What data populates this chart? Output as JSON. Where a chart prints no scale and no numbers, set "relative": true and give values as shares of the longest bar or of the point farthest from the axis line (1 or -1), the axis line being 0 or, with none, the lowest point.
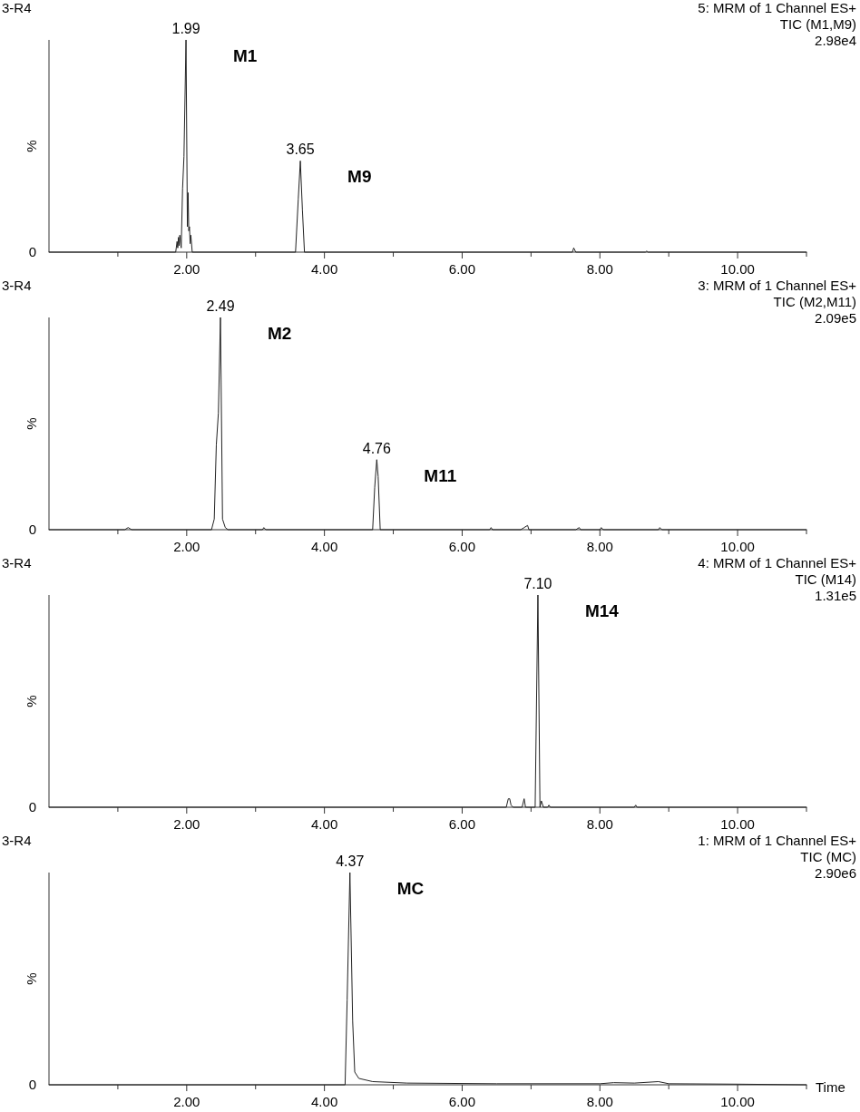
{
  "chart_data": [
    {
      "type": "line",
      "title": "3-R4",
      "ylabel": "%",
      "relative": true,
      "xlim": [
        0,
        11
      ],
      "xticks": [
        {
          "value": 1,
          "label": null
        },
        {
          "value": 2,
          "label": "2.00"
        },
        {
          "value": 3,
          "label": null
        },
        {
          "value": 4,
          "label": "4.00"
        },
        {
          "value": 5,
          "label": null
        },
        {
          "value": 6,
          "label": "6.00"
        },
        {
          "value": 7,
          "label": null
        },
        {
          "value": 8,
          "label": "8.00"
        },
        {
          "value": 9,
          "label": null
        },
        {
          "value": 10,
          "label": "10.00"
        },
        {
          "value": 11,
          "label": null
        }
      ],
      "series": [
        {
          "color": "#222222",
          "x": [
            0,
            1.84,
            1.86,
            1.87,
            1.88,
            1.89,
            1.9,
            1.92,
            1.94,
            1.96,
            1.99,
            2.01,
            2.02,
            2.03,
            2.04,
            2.05,
            2.06,
            2.08,
            3.58,
            3.62,
            3.65,
            3.68,
            3.71,
            7.6,
            7.62,
            7.65,
            8.66,
            8.68,
            8.7,
            11
          ],
          "values": [
            0,
            0,
            0.05,
            0.02,
            0.07,
            0.03,
            0.08,
            0.02,
            0.3,
            0.45,
            1,
            0.12,
            0.28,
            0.1,
            0.12,
            0.04,
            0.08,
            0,
            0,
            0.25,
            0.43,
            0.2,
            0,
            0,
            0.02,
            0,
            0,
            0.005,
            0,
            0
          ]
        }
      ],
      "annotations": [
        "5: MRM of 1 Channel ES+",
        "TIC (M1,M9)",
        "2.98e4",
        "0",
        "M1",
        "M9",
        {
          "text": "1.99",
          "x": 1.99,
          "y": 1
        },
        {
          "text": "3.65",
          "x": 3.65,
          "y": 0.43
        }
      ]
    },
    {
      "type": "line",
      "title": "3-R4",
      "ylabel": "%",
      "relative": true,
      "xlim": [
        0,
        11
      ],
      "xticks": [
        {
          "value": 1,
          "label": null
        },
        {
          "value": 2,
          "label": "2.00"
        },
        {
          "value": 3,
          "label": null
        },
        {
          "value": 4,
          "label": "4.00"
        },
        {
          "value": 5,
          "label": null
        },
        {
          "value": 6,
          "label": "6.00"
        },
        {
          "value": 7,
          "label": null
        },
        {
          "value": 8,
          "label": "8.00"
        },
        {
          "value": 9,
          "label": null
        },
        {
          "value": 10,
          "label": "10.00"
        },
        {
          "value": 11,
          "label": null
        }
      ],
      "series": [
        {
          "color": "#222222",
          "x": [
            0,
            1.1,
            1.15,
            1.2,
            2.36,
            2.4,
            2.43,
            2.46,
            2.49,
            2.52,
            2.56,
            2.6,
            3.1,
            3.12,
            3.15,
            4.7,
            4.73,
            4.76,
            4.78,
            4.81,
            6.4,
            6.42,
            6.44,
            6.85,
            6.9,
            6.95,
            6.97,
            7.65,
            7.7,
            7.72,
            8.0,
            8.02,
            8.05,
            8.85,
            8.87,
            8.9,
            11
          ],
          "values": [
            0,
            0,
            0.01,
            0,
            0,
            0.05,
            0.4,
            0.55,
            1,
            0.05,
            0.01,
            0,
            0,
            0.01,
            0,
            0,
            0.2,
            0.33,
            0.25,
            0,
            0,
            0.01,
            0,
            0,
            0.01,
            0.02,
            0,
            0,
            0.01,
            0,
            0,
            0.01,
            0,
            0,
            0.01,
            0,
            0
          ]
        }
      ],
      "annotations": [
        "3: MRM of 1 Channel ES+",
        "TIC (M2,M11)",
        "2.09e5",
        "0",
        "M2",
        "M11",
        {
          "text": "2.49",
          "x": 2.49,
          "y": 1
        },
        {
          "text": "4.76",
          "x": 4.76,
          "y": 0.33
        }
      ]
    },
    {
      "type": "line",
      "title": "3-R4",
      "ylabel": "%",
      "relative": true,
      "xlim": [
        0,
        11
      ],
      "xticks": [
        {
          "value": 1,
          "label": null
        },
        {
          "value": 2,
          "label": "2.00"
        },
        {
          "value": 3,
          "label": null
        },
        {
          "value": 4,
          "label": "4.00"
        },
        {
          "value": 5,
          "label": null
        },
        {
          "value": 6,
          "label": "6.00"
        },
        {
          "value": 7,
          "label": null
        },
        {
          "value": 8,
          "label": "8.00"
        },
        {
          "value": 9,
          "label": null
        },
        {
          "value": 10,
          "label": "10.00"
        },
        {
          "value": 11,
          "label": null
        }
      ],
      "series": [
        {
          "color": "#222222",
          "x": [
            0,
            6.64,
            6.67,
            6.69,
            6.71,
            6.74,
            6.87,
            6.9,
            6.92,
            7.06,
            7.1,
            7.13,
            7.15,
            7.18,
            7.24,
            7.26,
            7.28,
            8.5,
            8.52,
            8.54,
            11
          ],
          "values": [
            0,
            0,
            0.04,
            0.04,
            0.01,
            0,
            0,
            0.04,
            0,
            0,
            1,
            0,
            0.03,
            0,
            0,
            0.01,
            0,
            0,
            0.01,
            0,
            0
          ]
        }
      ],
      "annotations": [
        "4: MRM of 1 Channel ES+",
        "TIC (M14)",
        "1.31e5",
        "0",
        "M14",
        {
          "text": "7.10",
          "x": 7.1,
          "y": 1
        }
      ]
    },
    {
      "type": "line",
      "title": "3-R4",
      "ylabel": "%",
      "xlabel": "Time",
      "relative": true,
      "xlim": [
        0,
        11
      ],
      "xticks": [
        {
          "value": 1,
          "label": null
        },
        {
          "value": 2,
          "label": "2.00"
        },
        {
          "value": 3,
          "label": null
        },
        {
          "value": 4,
          "label": "4.00"
        },
        {
          "value": 5,
          "label": null
        },
        {
          "value": 6,
          "label": "6.00"
        },
        {
          "value": 7,
          "label": null
        },
        {
          "value": 8,
          "label": "8.00"
        },
        {
          "value": 9,
          "label": null
        },
        {
          "value": 10,
          "label": "10.00"
        },
        {
          "value": 11,
          "label": null
        }
      ],
      "series": [
        {
          "color": "#222222",
          "x": [
            0,
            4.3,
            4.33,
            4.37,
            4.41,
            4.44,
            4.5,
            4.7,
            5.2,
            6.5,
            8.0,
            8.2,
            8.5,
            8.85,
            9.0,
            10.0,
            11
          ],
          "values": [
            0,
            0,
            0.4,
            1,
            0.3,
            0.06,
            0.03,
            0.015,
            0.008,
            0.005,
            0.005,
            0.01,
            0.008,
            0.015,
            0.005,
            0.003,
            0
          ]
        }
      ],
      "annotations": [
        "1: MRM of 1 Channel ES+",
        "TIC (MC)",
        "2.90e6",
        "0",
        "MC",
        {
          "text": "4.37",
          "x": 4.37,
          "y": 1
        }
      ]
    }
  ]
}
